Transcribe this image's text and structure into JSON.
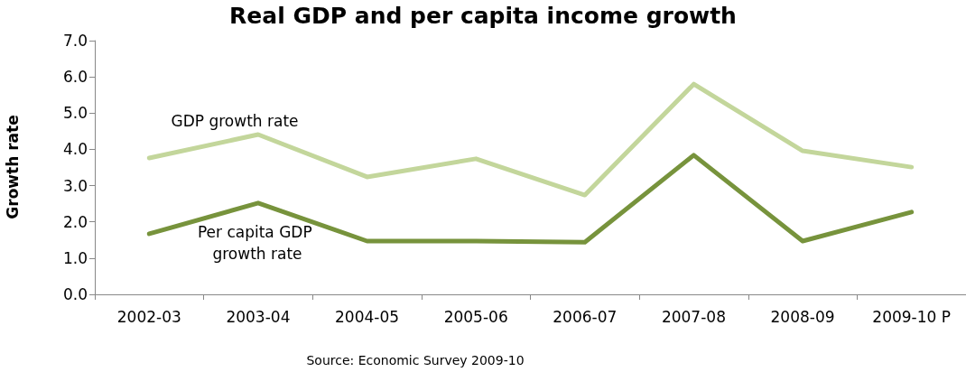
{
  "chart_data": {
    "type": "line",
    "title": "Real GDP and per capita income growth",
    "ylabel": "Growth rate",
    "categories": [
      "2002-03",
      "2003-04",
      "2004-05",
      "2005-06",
      "2006-07",
      "2007-08",
      "2008-09",
      "2009-10 P"
    ],
    "series": [
      {
        "name": "GDP growth rate",
        "color": "#c3d69b",
        "values": [
          3.76,
          4.41,
          3.24,
          3.74,
          2.74,
          5.8,
          3.96,
          3.51
        ]
      },
      {
        "name": "Per capita GDP growth rate",
        "color": "#77933c",
        "values": [
          1.67,
          2.52,
          1.47,
          1.47,
          1.44,
          3.84,
          1.47,
          2.27
        ]
      }
    ],
    "ylim": [
      0,
      7
    ],
    "yticks": [
      {
        "value": 0,
        "label": "0.0"
      },
      {
        "value": 1,
        "label": "1.0"
      },
      {
        "value": 2,
        "label": "2.0"
      },
      {
        "value": 3,
        "label": "3.0"
      },
      {
        "value": 4,
        "label": "4.0"
      },
      {
        "value": 5,
        "label": "5.0"
      },
      {
        "value": 6,
        "label": "6.0"
      },
      {
        "value": 7,
        "label": "7.0"
      }
    ],
    "grid": false,
    "legend": false,
    "marker": "none",
    "line_style": "solid",
    "annotations": [
      "Source: Economic Survey 2009-10"
    ]
  }
}
